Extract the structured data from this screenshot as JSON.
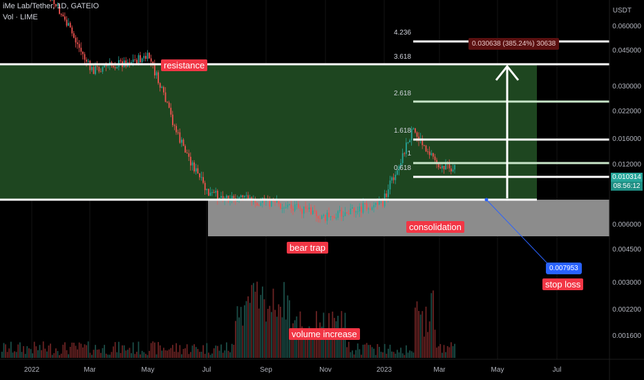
{
  "header": {
    "symbol": "iMe Lab/Tether, 1D, GATEIO",
    "indicator": "Vol · LIME"
  },
  "axis": {
    "currency": "USDT",
    "y_ticks": [
      "0.060000",
      "0.045000",
      "0.030000",
      "0.022000",
      "0.016000",
      "0.012000",
      "0.006000",
      "0.004500",
      "0.003000",
      "0.002200",
      "0.001600"
    ],
    "x_ticks": [
      "2022",
      "Mar",
      "May",
      "Jul",
      "Sep",
      "Nov",
      "2023",
      "Mar",
      "May",
      "Jul"
    ]
  },
  "price_tag": {
    "price": "0.010314",
    "countdown": "08:56:12"
  },
  "annotations": {
    "resistance": "resistance",
    "consolidation": "consolidation",
    "bear_trap": "bear trap",
    "volume_increase": "volume increase",
    "stop_loss": "stop loss",
    "stop_loss_value": "0.007953",
    "measure": "0.030638 (385.24%) 30638"
  },
  "fib_levels": [
    "4.236",
    "3.618",
    "2.618",
    "1.618",
    "1",
    "0.618"
  ],
  "colors": {
    "green_zone": "#1e4620",
    "gray_zone": "#8c8c8c",
    "up": "#26a69a",
    "down": "#ef5350",
    "label_red": "#f23645"
  },
  "chart_data": {
    "type": "candlestick",
    "symbol": "iMe Lab/Tether",
    "interval": "1D",
    "exchange": "GATEIO",
    "price_levels": {
      "resistance": 0.036,
      "support": 0.0078,
      "stop_loss": 0.007953,
      "current": 0.010314,
      "target": 0.0406
    },
    "fib": [
      {
        "level": "4.236",
        "price": 0.0406
      },
      {
        "level": "3.618",
        "price": 0.036
      },
      {
        "level": "2.618",
        "price": 0.0255
      },
      {
        "level": "1.618",
        "price": 0.0172
      },
      {
        "level": "1",
        "price": 0.0135
      },
      {
        "level": "0.618",
        "price": 0.0112
      }
    ],
    "close_path": [
      {
        "x": "2022-01",
        "y": 0.075
      },
      {
        "x": "2022-02",
        "y": 0.05
      },
      {
        "x": "2022-03",
        "y": 0.028
      },
      {
        "x": "2022-04",
        "y": 0.03
      },
      {
        "x": "2022-05",
        "y": 0.032
      },
      {
        "x": "2022-06",
        "y": 0.014
      },
      {
        "x": "2022-07",
        "y": 0.0078
      },
      {
        "x": "2022-08",
        "y": 0.0075
      },
      {
        "x": "2022-09",
        "y": 0.0072
      },
      {
        "x": "2022-10",
        "y": 0.0068
      },
      {
        "x": "2022-11",
        "y": 0.0062
      },
      {
        "x": "2022-12",
        "y": 0.0066
      },
      {
        "x": "2023-01",
        "y": 0.0072
      },
      {
        "x": "2023-02",
        "y": 0.015
      },
      {
        "x": "2023-03",
        "y": 0.0103
      }
    ]
  }
}
